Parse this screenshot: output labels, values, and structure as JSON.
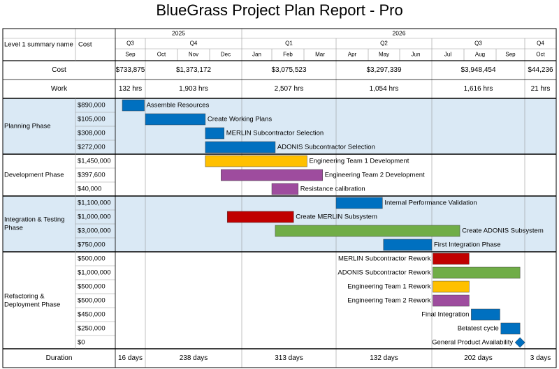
{
  "title": "BlueGrass Project Plan Report - Pro",
  "header": {
    "level1_label": "Level 1 summary name",
    "cost_label": "Cost",
    "years": [
      "2025",
      "2026"
    ],
    "quarters": [
      "Q3",
      "Q4",
      "Q1",
      "Q2",
      "Q3",
      "Q4"
    ],
    "months": [
      "Sep",
      "Oct",
      "Nov",
      "Dec",
      "Jan",
      "Feb",
      "Mar",
      "Apr",
      "May",
      "Jun",
      "Jul",
      "Aug",
      "Sep",
      "Oct"
    ]
  },
  "summary_rows": {
    "cost_label": "Cost",
    "cost_values": [
      "$733,875",
      "$1,373,172",
      "$3,075,523",
      "$3,297,339",
      "$3,948,454",
      "$44,236"
    ],
    "work_label": "Work",
    "work_values": [
      "132 hrs",
      "1,903 hrs",
      "2,507 hrs",
      "1,054 hrs",
      "1,616 hrs",
      "21 hrs"
    ],
    "duration_label": "Duration",
    "duration_values": [
      "16 days",
      "238 days",
      "313 days",
      "132 days",
      "202 days",
      "3 days"
    ]
  },
  "colors": {
    "blue": "#0070c0",
    "yellow": "#ffc000",
    "purple": "#9e4c9e",
    "red": "#c00000",
    "green": "#70ad47",
    "band": "#dae9f5"
  },
  "chart_data": {
    "type": "gantt",
    "title": "BlueGrass Project Plan Report - Pro",
    "time_axis": [
      "2025-09",
      "2025-10",
      "2025-11",
      "2025-12",
      "2026-01",
      "2026-02",
      "2026-03",
      "2026-04",
      "2026-05",
      "2026-06",
      "2026-07",
      "2026-08",
      "2026-09",
      "2026-10"
    ],
    "phases": [
      {
        "name": "Planning Phase",
        "tasks": [
          {
            "name": "Assemble Resources",
            "cost": "$890,000",
            "start": "2025-09-08",
            "end": "2025-09-30",
            "color": "blue"
          },
          {
            "name": "Create Working Plans",
            "cost": "$105,000",
            "start": "2025-10-01",
            "end": "2025-11-27",
            "color": "blue"
          },
          {
            "name": "MERLIN Subcontractor Selection",
            "cost": "$308,000",
            "start": "2025-11-27",
            "end": "2025-12-15",
            "color": "blue"
          },
          {
            "name": "ADONIS Subcontractor Selection",
            "cost": "$272,000",
            "start": "2025-11-27",
            "end": "2026-02-04",
            "color": "blue"
          }
        ]
      },
      {
        "name": "Development Phase",
        "tasks": [
          {
            "name": "Engineering Team 1 Development",
            "cost": "$1,450,000",
            "start": "2025-11-27",
            "end": "2026-03-04",
            "color": "yellow"
          },
          {
            "name": "Engineering Team 2 Development",
            "cost": "$397,600",
            "start": "2025-12-12",
            "end": "2026-03-19",
            "color": "purple"
          },
          {
            "name": "Resistance calibration",
            "cost": "$40,000",
            "start": "2026-02-01",
            "end": "2026-02-24",
            "color": "purple"
          }
        ]
      },
      {
        "name": "Integration & Testing Phase",
        "tasks": [
          {
            "name": "Internal Performance Validation",
            "cost": "$1,100,000",
            "start": "2026-04-01",
            "end": "2026-05-15",
            "color": "blue"
          },
          {
            "name": "Create MERLIN Subsystem",
            "cost": "$1,000,000",
            "start": "2025-12-18",
            "end": "2026-02-20",
            "color": "red"
          },
          {
            "name": "Create ADONIS Subsystem",
            "cost": "$3,000,000",
            "start": "2026-02-04",
            "end": "2026-07-28",
            "color": "green"
          },
          {
            "name": "First Integration Phase",
            "cost": "$750,000",
            "start": "2026-05-16",
            "end": "2026-07-01",
            "color": "blue"
          }
        ]
      },
      {
        "name": "Refactoring & Deployment Phase",
        "tasks": [
          {
            "name": "MERLIN Subcontractor Rework",
            "cost": "$500,000",
            "start": "2026-07-02",
            "end": "2026-08-06",
            "color": "red"
          },
          {
            "name": "ADONIS Subcontractor Rework",
            "cost": "$1,000,000",
            "start": "2026-07-02",
            "end": "2026-09-26",
            "color": "green"
          },
          {
            "name": "Engineering Team 1 Rework",
            "cost": "$500,000",
            "start": "2026-07-02",
            "end": "2026-08-06",
            "color": "yellow"
          },
          {
            "name": "Engineering Team 2 Rework",
            "cost": "$500,000",
            "start": "2026-07-02",
            "end": "2026-08-06",
            "color": "purple"
          },
          {
            "name": "Final Integration",
            "cost": "$450,000",
            "start": "2026-08-08",
            "end": "2026-09-05",
            "color": "blue"
          },
          {
            "name": "Betatest cycle",
            "cost": "$250,000",
            "start": "2026-09-06",
            "end": "2026-09-26",
            "color": "blue"
          },
          {
            "name": "General Product Availability",
            "cost": "$0",
            "start": "2026-09-26",
            "end": "2026-09-26",
            "color": "blue",
            "milestone": true
          }
        ]
      }
    ]
  }
}
